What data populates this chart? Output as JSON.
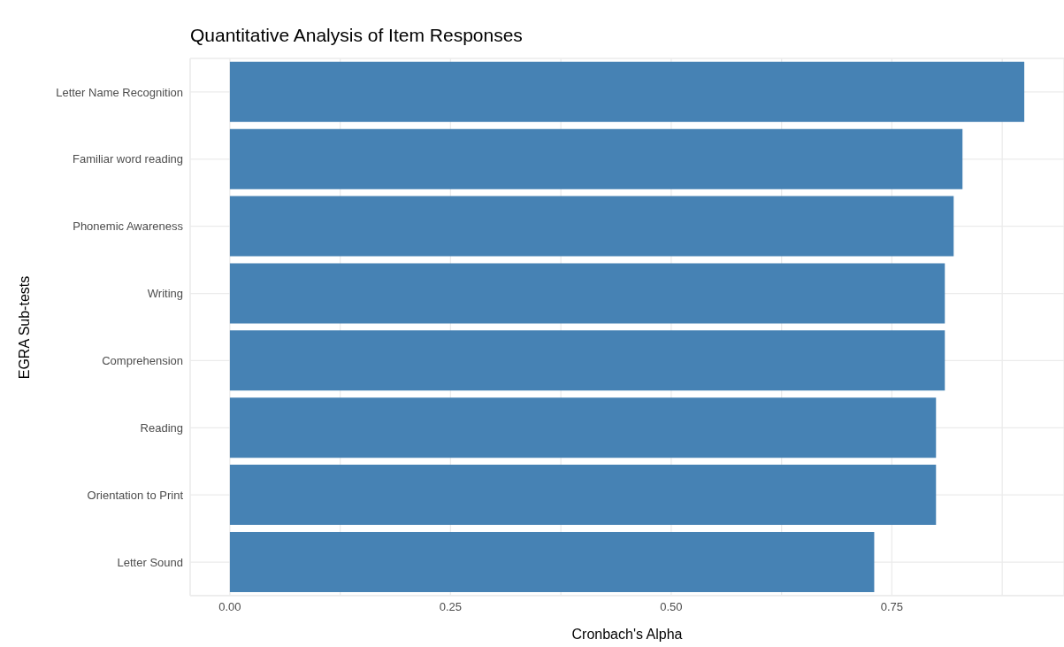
{
  "chart_data": {
    "type": "bar",
    "orientation": "horizontal",
    "title": "Quantitative Analysis of Item Responses",
    "xlabel": "Cronbach's Alpha",
    "ylabel": "EGRA Sub-tests",
    "categories": [
      "Letter Name Recognition",
      "Familiar word reading",
      "Phonemic Awareness",
      "Writing",
      "Comprehension",
      "Reading",
      "Orientation to Print",
      "Letter Sound"
    ],
    "values": [
      0.9,
      0.83,
      0.82,
      0.81,
      0.81,
      0.8,
      0.8,
      0.73
    ],
    "color": "#4682b4",
    "xlim": [
      -0.045,
      0.945
    ],
    "xticks": [
      {
        "value": 0,
        "label": "0.00"
      },
      {
        "value": 0.125,
        "label": null
      },
      {
        "value": 0.25,
        "label": "0.25"
      },
      {
        "value": 0.375,
        "label": null
      },
      {
        "value": 0.5,
        "label": "0.50"
      },
      {
        "value": 0.625,
        "label": null
      },
      {
        "value": 0.75,
        "label": "0.75"
      },
      {
        "value": 0.875,
        "label": null
      }
    ],
    "grid": true,
    "legend": false
  }
}
